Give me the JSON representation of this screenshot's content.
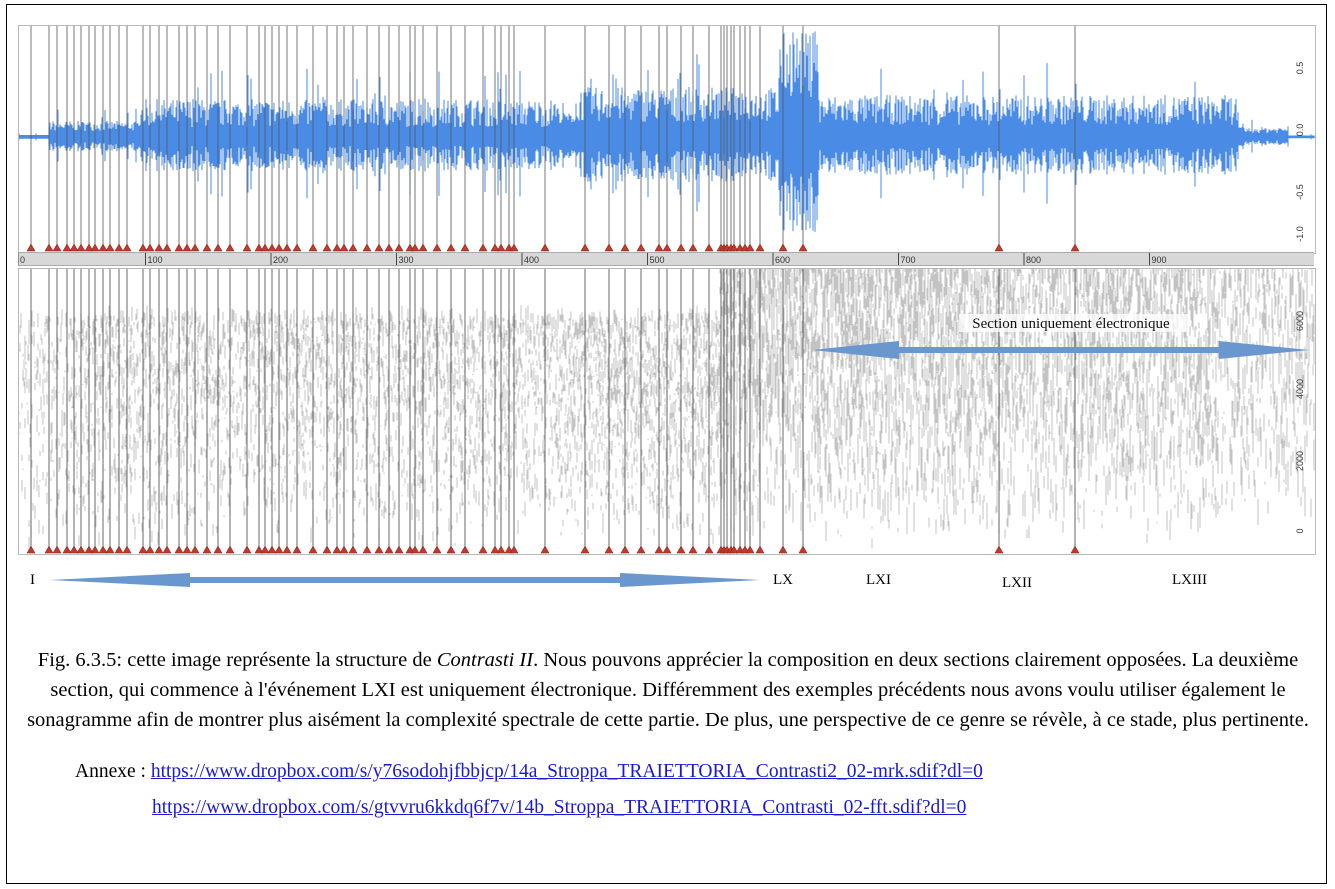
{
  "figure": {
    "ruler_ticks": [
      "0",
      "100",
      "200",
      "300",
      "400",
      "500",
      "600",
      "700",
      "800",
      "900"
    ],
    "wave_axis_ticks": [
      "0.5",
      "0.0",
      "-0.5",
      "-1.0"
    ],
    "spec_axis_ticks": [
      "6000",
      "4000",
      "2000",
      "0"
    ],
    "spec_overlay_label": "Section uniquement électronique",
    "section_labels": {
      "start": "I",
      "lx": "LX",
      "lxi": "LXI",
      "lxii": "LXII",
      "lxiii": "LXIII"
    },
    "colors": {
      "waveform": "#4a8be6",
      "arrow": "#6b97cf",
      "marker": "#c0392b",
      "link": "#1a1ad0"
    }
  },
  "caption": {
    "part1": "Fig. 6.3.5: cette image représente la structure de ",
    "title_italic": "Contrasti II",
    "part2": ". Nous pouvons apprécier la composition en deux sections clairement opposées. La deuxième section, qui commence à l'événement LXI est uniquement électronique. Différemment des exemples précédents nous avons voulu utiliser également le sonagramme afin de montrer plus aisément la complexité spectrale de cette partie. De plus, une perspective de ce genre se révèle, à ce stade, plus pertinente."
  },
  "annexe": {
    "label": "Annexe : ",
    "link1": "https://www.dropbox.com/s/y76sodohjfbbjcp/14a_Stroppa_TRAIETTORIA_Contrasti2_02-mrk.sdif?dl=0",
    "link2": "https://www.dropbox.com/s/gtvvru6kkdq6f7v/14b_Stroppa_TRAIETTORIA_Contrasti_02-fft.sdif?dl=0"
  }
}
